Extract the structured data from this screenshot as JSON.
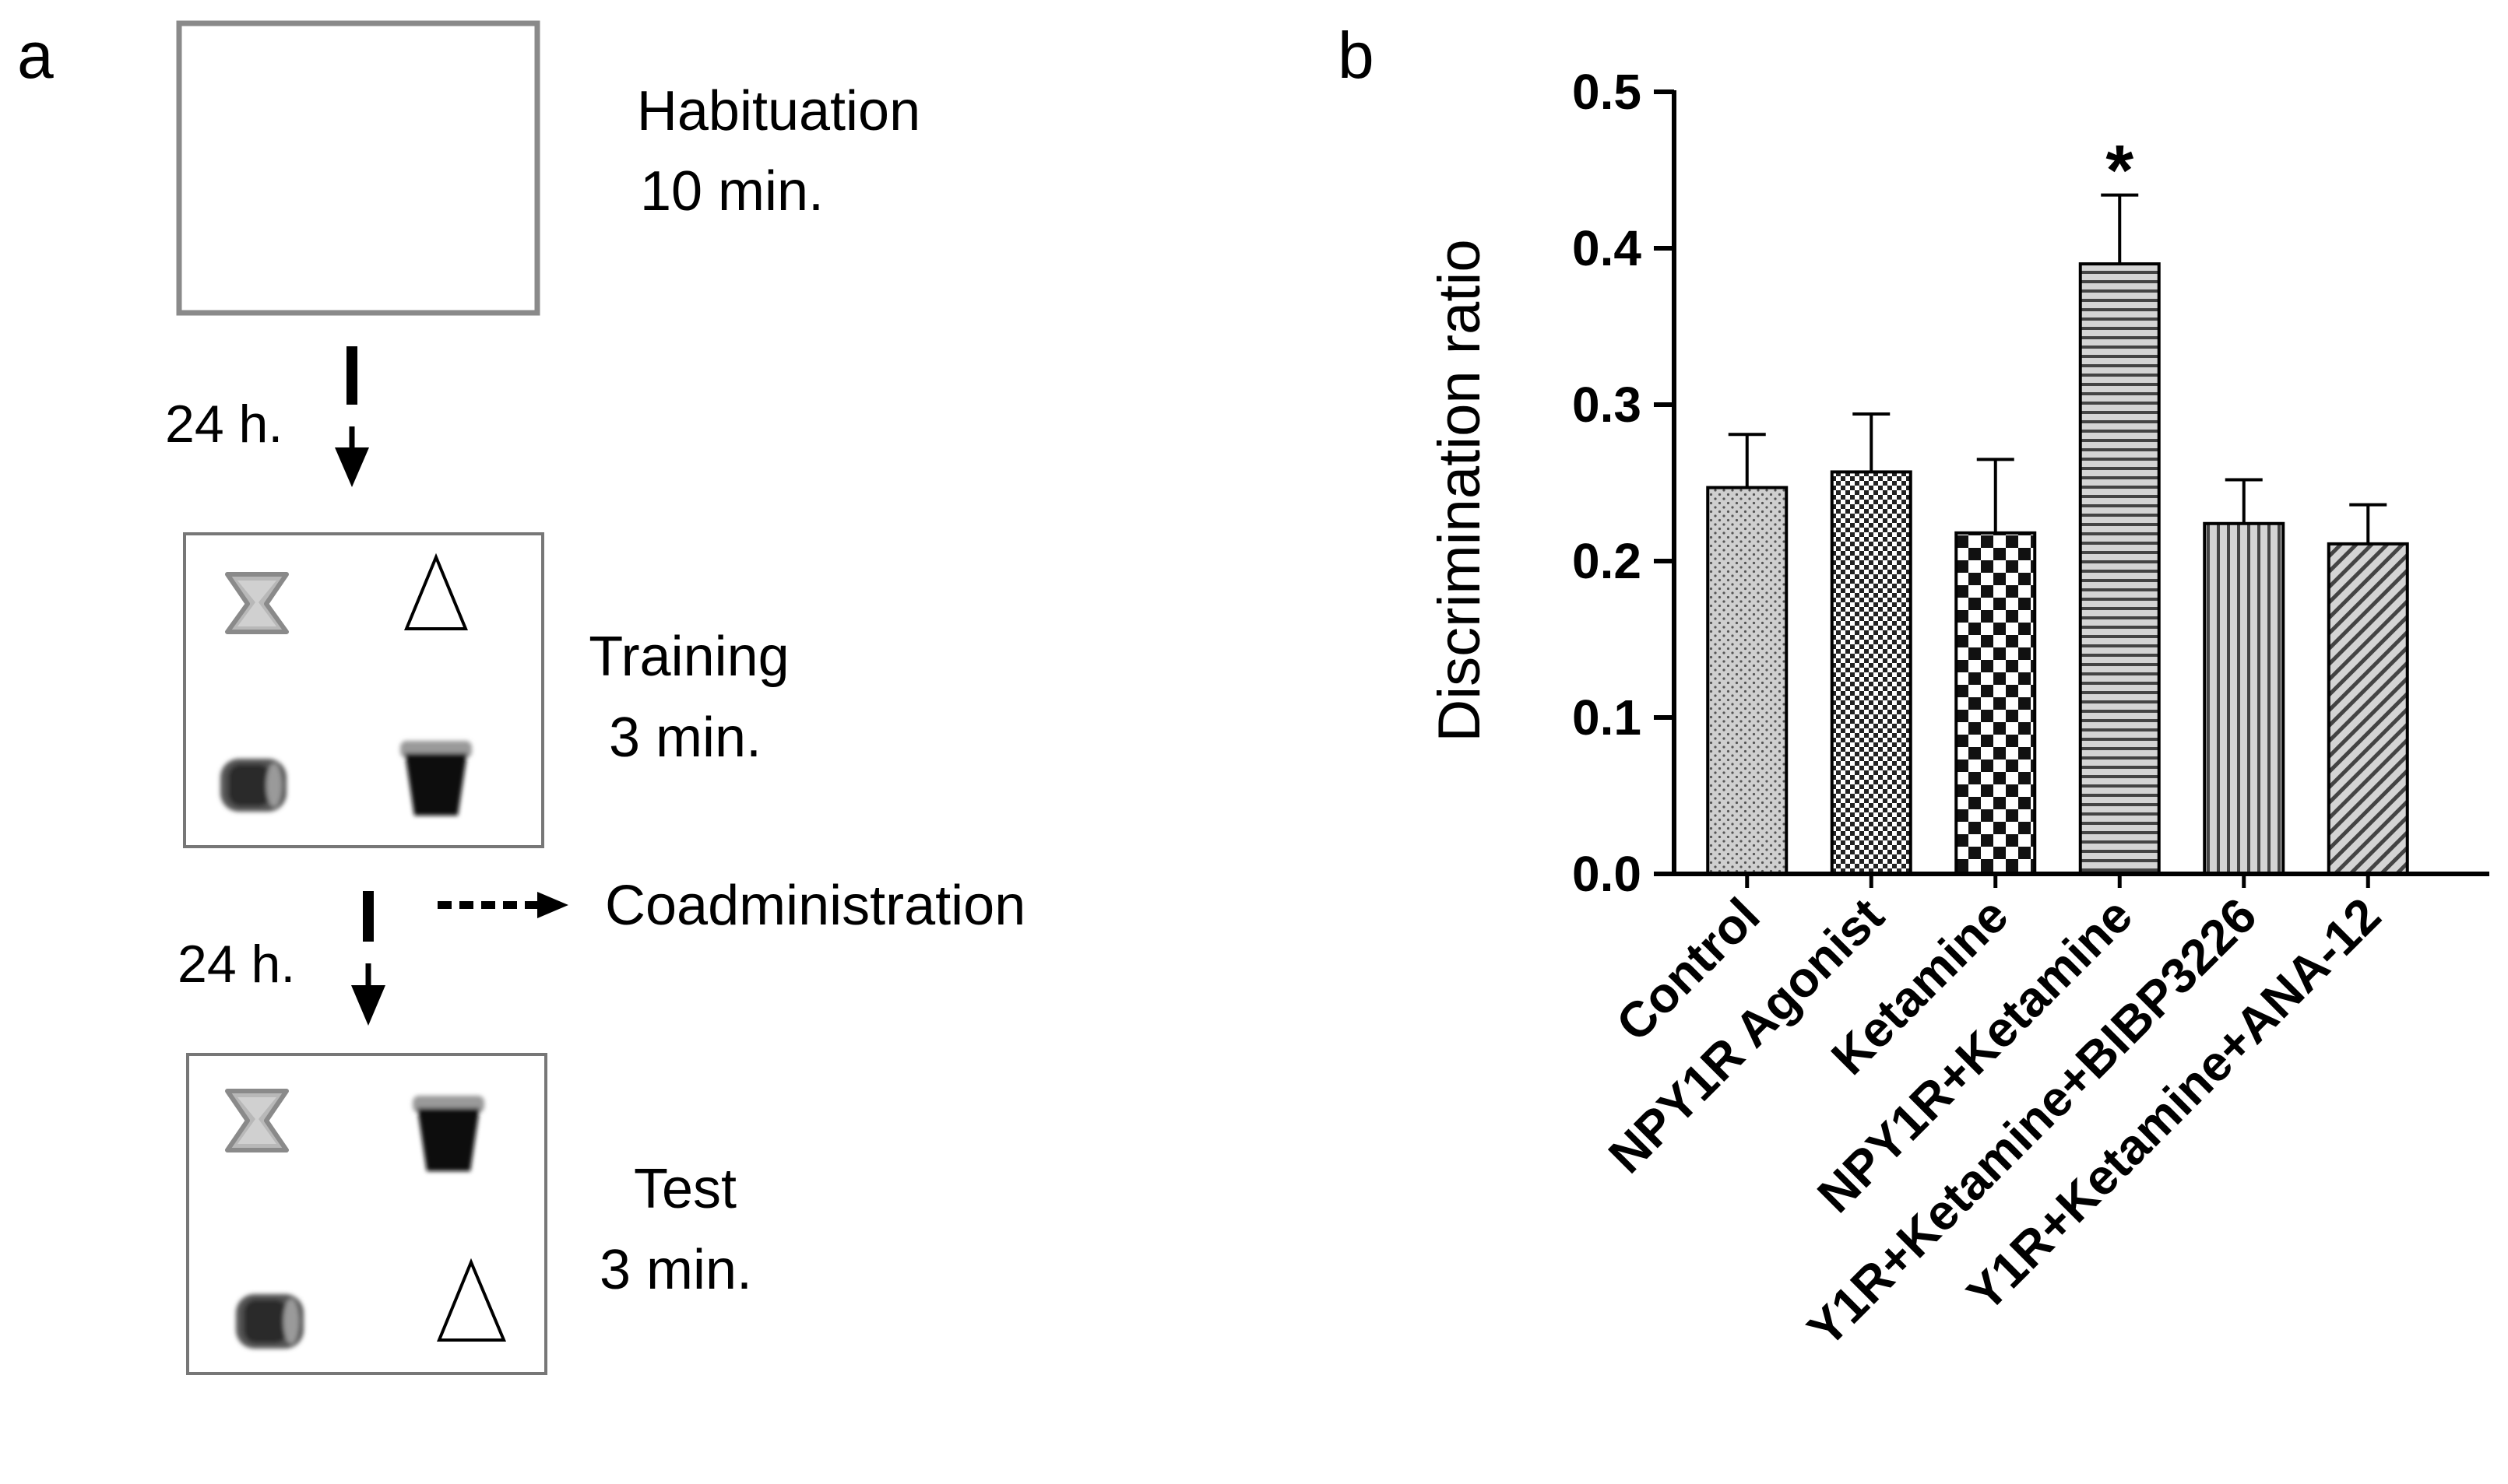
{
  "panel_a": {
    "letter": "a",
    "habituation": {
      "title": "Habituation",
      "duration": "10 min."
    },
    "interval_1": "24 h.",
    "training": {
      "title": "Training",
      "duration": "3 min."
    },
    "interval_2": "24 h.",
    "coadministration": "Coadministration",
    "test": {
      "title": "Test",
      "duration": "3 min."
    },
    "objects": [
      "hourglass-object",
      "triangle-object",
      "cylinder-object",
      "cup-object"
    ]
  },
  "panel_b": {
    "letter": "b"
  },
  "colors": {
    "bar_fill": "#c8c8c8",
    "bar_pattern": "#333333",
    "axis": "#000000",
    "box_habituation": "#8a8a8a"
  },
  "chart_data": {
    "type": "bar",
    "title": "",
    "xlabel": "",
    "ylabel": "Discrimination ratio",
    "ylim": [
      0,
      0.5
    ],
    "yticks": [
      0.0,
      0.1,
      0.2,
      0.3,
      0.4,
      0.5
    ],
    "ytick_labels": [
      "0.0",
      "0.1",
      "0.2",
      "0.3",
      "0.4",
      "0.5"
    ],
    "categories": [
      "Control",
      "NPY1R Agonist",
      "Ketamine",
      "NPY1R+Ketamine",
      "Y1R+Ketamine+BIBP3226",
      "Y1R+Ketamine+ANA-12"
    ],
    "values": [
      0.247,
      0.257,
      0.218,
      0.39,
      0.224,
      0.211
    ],
    "errors": [
      0.034,
      0.037,
      0.047,
      0.044,
      0.028,
      0.025
    ],
    "patterns": [
      "dots",
      "fine-checker",
      "checker",
      "horizontal",
      "vertical",
      "diagonal"
    ],
    "annotations": [
      {
        "category": "NPY1R+Ketamine",
        "text": "*"
      }
    ]
  }
}
